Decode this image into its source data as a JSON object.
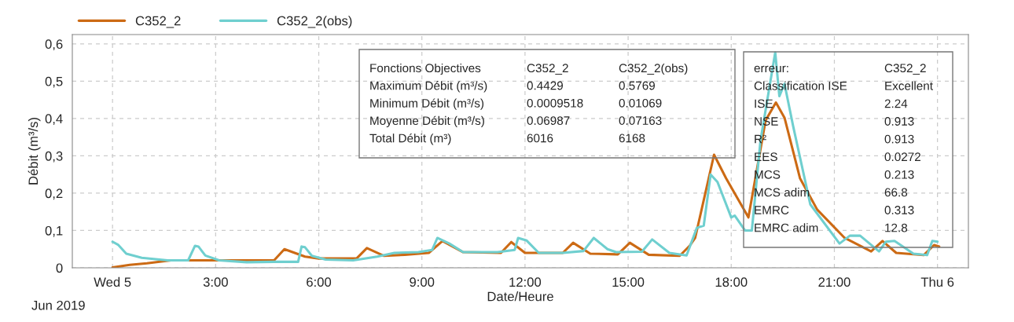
{
  "chart_data": {
    "type": "line",
    "xlabel": "Date/Heure",
    "ylabel": "Débit (m³/s)",
    "xlim": [
      -1.17,
      24.9
    ],
    "ylim": [
      0,
      0.625
    ],
    "xticks": [
      {
        "value": 0,
        "label": "Wed 5"
      },
      {
        "value": 3,
        "label": "3:00"
      },
      {
        "value": 6,
        "label": "6:00"
      },
      {
        "value": 9,
        "label": "9:00"
      },
      {
        "value": 12,
        "label": "12:00"
      },
      {
        "value": 15,
        "label": "15:00"
      },
      {
        "value": 18,
        "label": "18:00"
      },
      {
        "value": 21,
        "label": "21:00"
      },
      {
        "value": 24,
        "label": "Thu 6"
      }
    ],
    "yticks": [
      0,
      {
        "value": 0.1,
        "label": "0,1"
      },
      {
        "value": 0.2,
        "label": "0,2"
      },
      {
        "value": 0.3,
        "label": "0,3"
      },
      {
        "value": 0.4,
        "label": "0,4"
      },
      {
        "value": 0.5,
        "label": "0,5"
      },
      {
        "value": 0.6,
        "label": "0,6"
      }
    ],
    "grid": true,
    "legend": "top left",
    "line_style": "solid",
    "series": [
      {
        "name": "C352_2",
        "color": "#cc6a14",
        "x": [
          0,
          0.5,
          1.0,
          1.7,
          4.7,
          5.0,
          5.6,
          6.0,
          7.1,
          7.4,
          7.9,
          8.5,
          9.2,
          9.6,
          10.2,
          11.3,
          11.6,
          12.0,
          13.1,
          13.4,
          13.9,
          14.7,
          15.05,
          15.6,
          16.5,
          16.8,
          16.95,
          17.5,
          17.85,
          18.5,
          19.0,
          19.3,
          19.55,
          20.0,
          20.5,
          21.3,
          22.07,
          22.4,
          22.8,
          23.6,
          23.9,
          24.05
        ],
        "values": [
          0.001,
          0.008,
          0.012,
          0.02,
          0.02,
          0.05,
          0.03,
          0.025,
          0.025,
          0.053,
          0.032,
          0.035,
          0.04,
          0.072,
          0.042,
          0.04,
          0.069,
          0.04,
          0.04,
          0.067,
          0.038,
          0.036,
          0.067,
          0.035,
          0.032,
          0.06,
          0.08,
          0.303,
          0.24,
          0.135,
          0.395,
          0.443,
          0.402,
          0.24,
          0.156,
          0.08,
          0.044,
          0.072,
          0.04,
          0.034,
          0.061,
          0.057
        ]
      },
      {
        "name": "C352_2(obs)",
        "color": "#6fcfcf",
        "x": [
          0,
          0.16,
          0.4,
          0.85,
          1.6,
          2.2,
          2.4,
          2.5,
          2.7,
          3.1,
          3.9,
          4.7,
          5.4,
          5.5,
          5.6,
          5.8,
          6.2,
          7.0,
          7.7,
          8.2,
          8.9,
          9.3,
          9.45,
          9.8,
          10.2,
          11.2,
          11.7,
          11.8,
          12.05,
          12.4,
          13.1,
          13.7,
          14.0,
          14.4,
          14.65,
          15.4,
          15.7,
          16.2,
          16.7,
          17.0,
          17.2,
          17.4,
          17.6,
          18.0,
          18.1,
          18.4,
          18.6,
          18.85,
          19.28,
          19.4,
          19.55,
          19.8,
          20.3,
          21.15,
          21.45,
          21.75,
          22.3,
          22.5,
          22.75,
          23.3,
          23.7,
          23.85,
          24.0
        ],
        "values": [
          0.07,
          0.062,
          0.038,
          0.027,
          0.02,
          0.02,
          0.059,
          0.057,
          0.033,
          0.02,
          0.015,
          0.016,
          0.016,
          0.057,
          0.055,
          0.032,
          0.022,
          0.02,
          0.03,
          0.04,
          0.042,
          0.048,
          0.08,
          0.065,
          0.042,
          0.042,
          0.048,
          0.08,
          0.073,
          0.04,
          0.04,
          0.045,
          0.08,
          0.05,
          0.042,
          0.043,
          0.076,
          0.04,
          0.033,
          0.107,
          0.113,
          0.25,
          0.23,
          0.135,
          0.14,
          0.1,
          0.1,
          0.34,
          0.577,
          0.46,
          0.493,
          0.38,
          0.17,
          0.065,
          0.086,
          0.086,
          0.044,
          0.07,
          0.072,
          0.038,
          0.034,
          0.072,
          0.07
        ]
      }
    ],
    "annotations": [
      "Jun 2019",
      "Fonctions Objectives",
      "C352_2",
      "C352_2(obs)",
      "Maximum Débit (m³/s)",
      "0.4429",
      "0.5769",
      "Minimum Débit (m³/s)",
      "0.0009518",
      "0.01069",
      "Moyenne Débit (m³/s)",
      "0.06987",
      "0.07163",
      "Total Débit (m³)",
      "6016",
      "6168",
      "erreur:",
      "C352_2",
      "Classification ISE",
      "Excellent",
      "ISE",
      "2.24",
      "NSE",
      "0.913",
      "R²",
      "0.913",
      "EES",
      "0.0272",
      "MCS",
      "0.213",
      "MCS adim",
      "66.8",
      "EMRC",
      "0.313",
      "EMRC adim",
      "12.8"
    ]
  }
}
